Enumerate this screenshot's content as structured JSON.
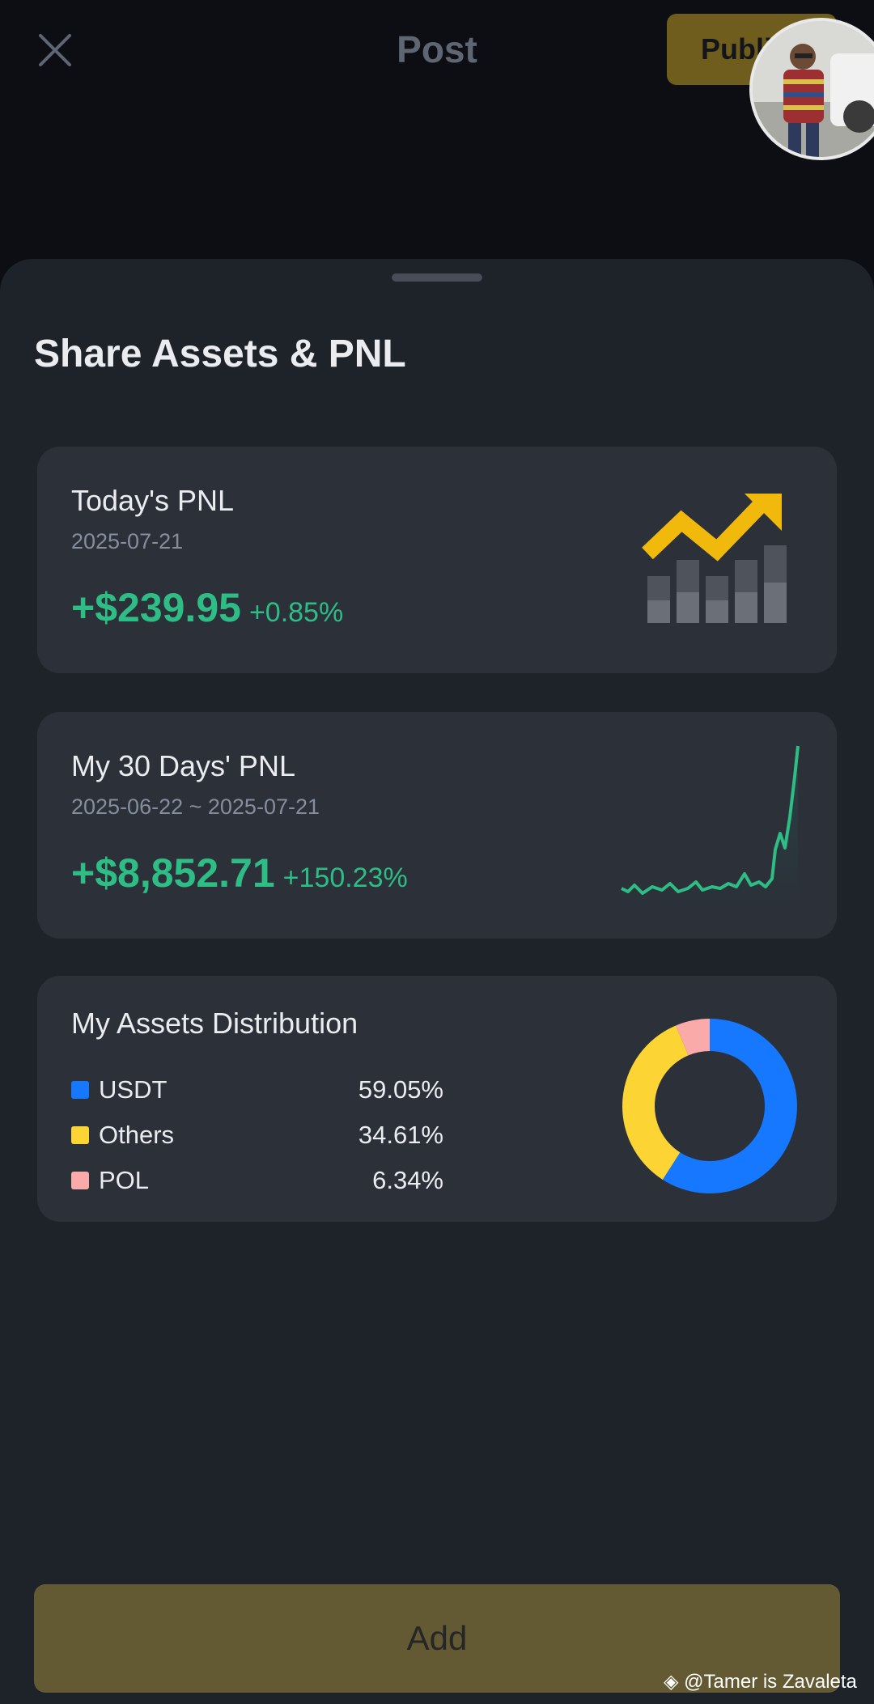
{
  "topbar": {
    "title": "Post",
    "publish_label": "Publish"
  },
  "sheet": {
    "title": "Share Assets & PNL"
  },
  "today_pnl": {
    "title": "Today's PNL",
    "date": "2025-07-21",
    "amount": "+$239.95",
    "percent": "+0.85%"
  },
  "thirty_day_pnl": {
    "title": "My 30 Days' PNL",
    "date_range": "2025-06-22 ~ 2025-07-21",
    "amount": "+$8,852.71",
    "percent": "+150.23%"
  },
  "assets": {
    "title": "My Assets Distribution",
    "items": [
      {
        "name": "USDT",
        "percent": "59.05%",
        "value": 59.05,
        "color": "#1677ff"
      },
      {
        "name": "Others",
        "percent": "34.61%",
        "value": 34.61,
        "color": "#fcd535"
      },
      {
        "name": "POL",
        "percent": "6.34%",
        "value": 6.34,
        "color": "#fbaaaa"
      }
    ]
  },
  "footer": {
    "add_label": "Add",
    "watermark": "@Tamer is Zavaleta"
  },
  "colors": {
    "positive": "#2ebd85",
    "accent": "#fcd535"
  }
}
